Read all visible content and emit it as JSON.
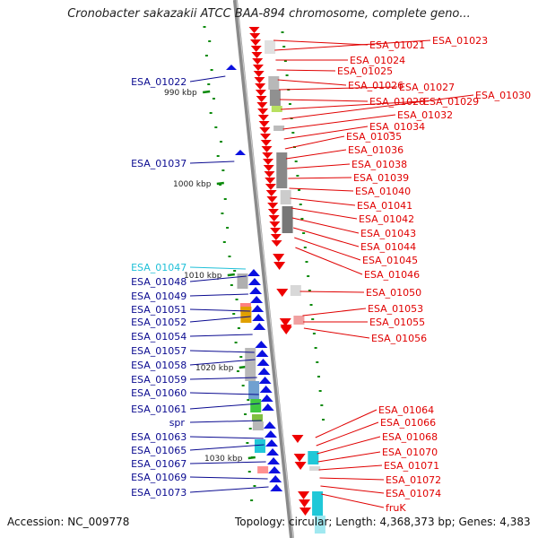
{
  "title": "Cronobacter sakazakii ATCC BAA-894 chromosome, complete geno...",
  "accession": "Accession: NC_009778",
  "topology": "Topology: circular; Length: 4,368,373 bp; Genes: 4,383",
  "colors": {
    "right_label": "#e00000",
    "left_label": "#0a0a90",
    "highlight_label": "#20c0d8",
    "tick": "#0a8a0a",
    "backbone": "#8a8a8a"
  },
  "ticks": [
    "990 kbp",
    "1000 kbp",
    "1010 kbp",
    "1020 kbp",
    "1030 kbp"
  ],
  "left_genes": [
    {
      "label": "ESA_01022"
    },
    {
      "label": "ESA_01037"
    },
    {
      "label": "ESA_01047",
      "highlight": true
    },
    {
      "label": "ESA_01048"
    },
    {
      "label": "ESA_01049"
    },
    {
      "label": "ESA_01051"
    },
    {
      "label": "ESA_01052"
    },
    {
      "label": "ESA_01054"
    },
    {
      "label": "ESA_01057"
    },
    {
      "label": "ESA_01058"
    },
    {
      "label": "ESA_01059"
    },
    {
      "label": "ESA_01060"
    },
    {
      "label": "ESA_01061"
    },
    {
      "label": "spr"
    },
    {
      "label": "ESA_01063"
    },
    {
      "label": "ESA_01065"
    },
    {
      "label": "ESA_01067"
    },
    {
      "label": "ESA_01069"
    },
    {
      "label": "ESA_01073"
    }
  ],
  "right_genes": [
    {
      "label": "ESA_01021"
    },
    {
      "label": "ESA_01023"
    },
    {
      "label": "ESA_01024"
    },
    {
      "label": "ESA_01025"
    },
    {
      "label": "ESA_01026"
    },
    {
      "label": "ESA_01027"
    },
    {
      "label": "ESA_01028"
    },
    {
      "label": "ESA_01029"
    },
    {
      "label": "ESA_01030"
    },
    {
      "label": "ESA_01032"
    },
    {
      "label": "ESA_01034"
    },
    {
      "label": "ESA_01035"
    },
    {
      "label": "ESA_01036"
    },
    {
      "label": "ESA_01038"
    },
    {
      "label": "ESA_01039"
    },
    {
      "label": "ESA_01040"
    },
    {
      "label": "ESA_01041"
    },
    {
      "label": "ESA_01042"
    },
    {
      "label": "ESA_01043"
    },
    {
      "label": "ESA_01044"
    },
    {
      "label": "ESA_01045"
    },
    {
      "label": "ESA_01046"
    },
    {
      "label": "ESA_01050"
    },
    {
      "label": "ESA_01053"
    },
    {
      "label": "ESA_01055"
    },
    {
      "label": "ESA_01056"
    },
    {
      "label": "ESA_01064"
    },
    {
      "label": "ESA_01066"
    },
    {
      "label": "ESA_01068"
    },
    {
      "label": "ESA_01070"
    },
    {
      "label": "ESA_01071"
    },
    {
      "label": "ESA_01072"
    },
    {
      "label": "ESA_01074"
    },
    {
      "label": "fruK"
    }
  ]
}
